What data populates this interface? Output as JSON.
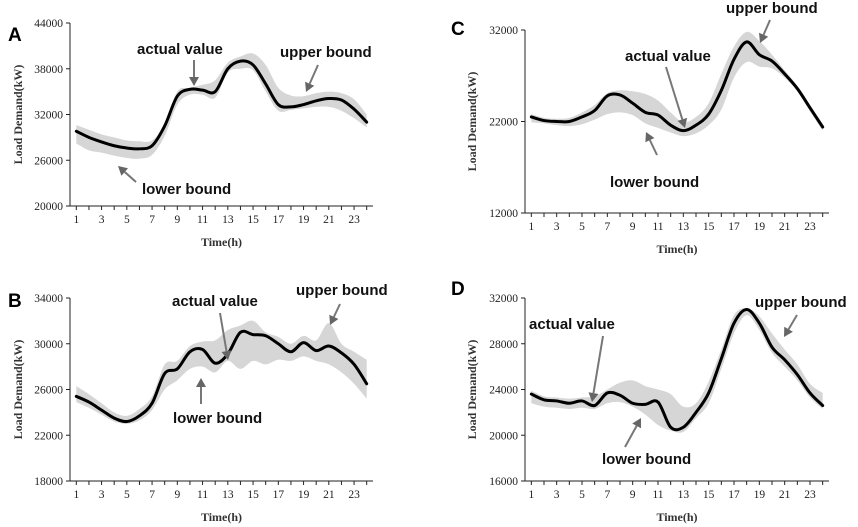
{
  "chart_data": [
    {
      "panel": "A",
      "type": "line",
      "xlabel": "Time(h)",
      "ylabel": "Load Demand(kW)",
      "ylim": [
        20000,
        44000
      ],
      "yticks": [
        20000,
        26000,
        32000,
        38000,
        44000
      ],
      "xticks": [
        1,
        3,
        5,
        7,
        9,
        11,
        13,
        15,
        17,
        19,
        21,
        23
      ],
      "x": [
        1,
        2,
        3,
        4,
        5,
        6,
        7,
        8,
        9,
        10,
        11,
        12,
        13,
        14,
        15,
        16,
        17,
        18,
        19,
        20,
        21,
        22,
        23,
        24
      ],
      "series": [
        {
          "name": "actual value",
          "values": [
            29800,
            29000,
            28400,
            27900,
            27600,
            27500,
            27900,
            30500,
            34400,
            35300,
            35200,
            35000,
            38000,
            39000,
            38500,
            36000,
            33300,
            33000,
            33300,
            33800,
            34100,
            33900,
            32700,
            31000
          ]
        },
        {
          "name": "upper bound",
          "values": [
            30600,
            30000,
            29400,
            29000,
            28600,
            28500,
            28600,
            30700,
            35000,
            35500,
            35900,
            36500,
            38800,
            39600,
            40000,
            38500,
            35500,
            34500,
            34400,
            34800,
            35000,
            34800,
            34000,
            32000
          ]
        },
        {
          "name": "lower bound",
          "values": [
            28200,
            27300,
            27000,
            26600,
            26300,
            26200,
            26700,
            29200,
            33300,
            34600,
            34600,
            34200,
            37500,
            38000,
            37800,
            35000,
            32500,
            32600,
            32800,
            33000,
            33000,
            32500,
            31500,
            30300
          ]
        }
      ],
      "annotations": [
        {
          "text": "actual value",
          "x": 10,
          "y": 35300
        },
        {
          "text": "upper bound",
          "x": 19,
          "y": 34500
        },
        {
          "text": "lower bound",
          "x": 4,
          "y": 26400
        }
      ]
    },
    {
      "panel": "B",
      "type": "line",
      "xlabel": "Time(h)",
      "ylabel": "Load Demand(kW)",
      "ylim": [
        18000,
        34000
      ],
      "yticks": [
        18000,
        22000,
        26000,
        30000,
        34000
      ],
      "xticks": [
        1,
        3,
        5,
        7,
        9,
        11,
        13,
        15,
        17,
        19,
        21,
        23
      ],
      "x": [
        1,
        2,
        3,
        4,
        5,
        6,
        7,
        8,
        9,
        10,
        11,
        12,
        13,
        14,
        15,
        16,
        17,
        18,
        19,
        20,
        21,
        22,
        23,
        24
      ],
      "series": [
        {
          "name": "actual value",
          "values": [
            25400,
            24900,
            24200,
            23500,
            23200,
            23700,
            24800,
            27400,
            27800,
            29300,
            29500,
            28300,
            29100,
            31000,
            30800,
            30700,
            30000,
            29300,
            30100,
            29400,
            29800,
            29200,
            28200,
            26500
          ]
        },
        {
          "name": "upper bound",
          "values": [
            26300,
            25600,
            24800,
            24000,
            23700,
            24300,
            25400,
            28200,
            28500,
            29800,
            30200,
            30300,
            31200,
            31600,
            32000,
            31000,
            30600,
            30000,
            30700,
            30300,
            31800,
            30000,
            29300,
            28600
          ]
        },
        {
          "name": "lower bound",
          "values": [
            24900,
            24400,
            23800,
            23200,
            23000,
            23300,
            24200,
            26000,
            26800,
            27800,
            28000,
            27500,
            28500,
            27800,
            28500,
            28200,
            28600,
            28500,
            28900,
            28500,
            28200,
            27500,
            26500,
            25200
          ]
        }
      ],
      "annotations": [
        {
          "text": "actual value",
          "x": 12.5,
          "y": 28200
        },
        {
          "text": "upper bound",
          "x": 21,
          "y": 30300
        },
        {
          "text": "lower bound",
          "x": 9,
          "y": 27600
        }
      ]
    },
    {
      "panel": "C",
      "type": "line",
      "xlabel": "Time(h)",
      "ylabel": "Load Demand(kW)",
      "ylim": [
        12000,
        32000
      ],
      "yticks": [
        12000,
        22000,
        32000
      ],
      "xticks": [
        1,
        3,
        5,
        7,
        9,
        11,
        13,
        15,
        17,
        19,
        21,
        23
      ],
      "x": [
        1,
        2,
        3,
        4,
        5,
        6,
        7,
        8,
        9,
        10,
        11,
        12,
        13,
        14,
        15,
        16,
        17,
        18,
        19,
        20,
        21,
        22,
        23,
        24
      ],
      "series": [
        {
          "name": "actual value",
          "values": [
            22500,
            22100,
            22000,
            22000,
            22500,
            23200,
            24800,
            24900,
            24000,
            23000,
            22700,
            21600,
            21000,
            21600,
            22800,
            25400,
            28800,
            30700,
            29300,
            28600,
            27200,
            25600,
            23500,
            21400
          ]
        },
        {
          "name": "upper bound",
          "values": [
            22800,
            22400,
            22300,
            22400,
            23000,
            23800,
            25100,
            25400,
            25300,
            25000,
            24300,
            23000,
            21900,
            22500,
            24000,
            27200,
            30200,
            31800,
            30800,
            29300,
            27600,
            25900,
            23800,
            21700
          ]
        },
        {
          "name": "lower bound",
          "values": [
            21900,
            21800,
            21600,
            21500,
            21700,
            22200,
            22800,
            23000,
            22700,
            21800,
            21300,
            20800,
            20400,
            20700,
            21600,
            23300,
            26800,
            28500,
            28000,
            27800,
            26800,
            25300,
            23100,
            21000
          ]
        }
      ],
      "annotations": [
        {
          "text": "upper bound",
          "x": 18,
          "y": 30700
        },
        {
          "text": "actual value",
          "x": 13,
          "y": 21000
        },
        {
          "text": "lower bound",
          "x": 11,
          "y": 21500
        }
      ]
    },
    {
      "panel": "D",
      "type": "line",
      "xlabel": "Time(h)",
      "ylabel": "Load Demand(kW)",
      "ylim": [
        16000,
        32000
      ],
      "yticks": [
        16000,
        20000,
        24000,
        28000,
        32000
      ],
      "xticks": [
        1,
        3,
        5,
        7,
        9,
        11,
        13,
        15,
        17,
        19,
        21,
        23
      ],
      "x": [
        1,
        2,
        3,
        4,
        5,
        6,
        7,
        8,
        9,
        10,
        11,
        12,
        13,
        14,
        15,
        16,
        17,
        18,
        19,
        20,
        21,
        22,
        23,
        24
      ],
      "series": [
        {
          "name": "actual value",
          "values": [
            23600,
            23100,
            23000,
            22800,
            23000,
            22600,
            23700,
            23500,
            22800,
            22700,
            22900,
            20700,
            20700,
            22000,
            23700,
            26700,
            29800,
            31000,
            29800,
            27700,
            26600,
            25300,
            23700,
            22600
          ]
        },
        {
          "name": "upper bound",
          "values": [
            23900,
            23400,
            23300,
            23200,
            23300,
            23400,
            24000,
            24600,
            24800,
            24300,
            24000,
            23600,
            22500,
            22800,
            24700,
            27500,
            30500,
            31100,
            30400,
            28900,
            27500,
            26200,
            24500,
            23700
          ]
        },
        {
          "name": "lower bound",
          "values": [
            22800,
            22500,
            22400,
            22300,
            22400,
            22300,
            22800,
            22900,
            22500,
            21800,
            20900,
            20400,
            20300,
            21500,
            22800,
            25800,
            28900,
            30500,
            29200,
            27200,
            26000,
            24800,
            23300,
            22300
          ]
        }
      ],
      "annotations": [
        {
          "text": "upper bound",
          "x": 20,
          "y": 28000
        },
        {
          "text": "actual value",
          "x": 6,
          "y": 22600
        },
        {
          "text": "lower bound",
          "x": 10,
          "y": 22000
        }
      ]
    }
  ]
}
